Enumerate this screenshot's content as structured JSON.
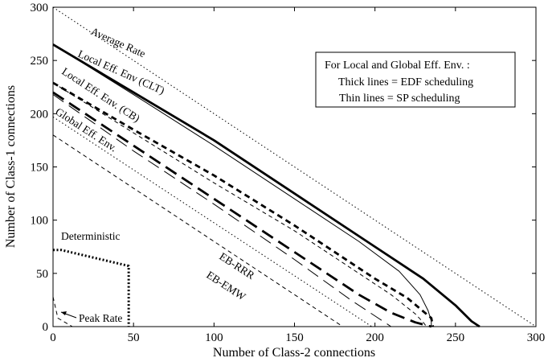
{
  "chart_data": {
    "type": "line",
    "xlabel": "Number of Class-2 connections",
    "ylabel": "Number of Class-1 connections",
    "xlim": [
      0,
      300
    ],
    "ylim": [
      0,
      300
    ],
    "xticks": [
      0,
      50,
      100,
      150,
      200,
      250,
      300
    ],
    "yticks": [
      0,
      50,
      100,
      150,
      200,
      250,
      300
    ],
    "grid": false,
    "legend": {
      "placement": "top-right",
      "lines": [
        "For Local and Global Eff. Env. :",
        "Thick lines = EDF scheduling",
        "Thin lines = SP scheduling"
      ]
    },
    "annotations": {
      "average_rate": "Average Rate",
      "local_clt": "Local Eff. Env (CLT)",
      "local_cb": "Local Eff. Env. (CB)",
      "global": "Global Eff. Env.",
      "eb_rrr": "EB-RRR",
      "eb_emw": "EB-EMW",
      "deterministic": "Deterministic",
      "peak_rate": "Peak Rate"
    },
    "series": [
      {
        "id": "average-rate",
        "style": "dotted-thin",
        "x": [
          0,
          300
        ],
        "y": [
          300,
          0
        ]
      },
      {
        "id": "local-clt-edf",
        "style": "solid-thick",
        "x": [
          0,
          50,
          100,
          150,
          200,
          230,
          250,
          260,
          265
        ],
        "y": [
          265,
          220,
          175,
          125,
          75,
          45,
          20,
          5,
          0
        ]
      },
      {
        "id": "local-clt-sp",
        "style": "solid-thin",
        "x": [
          0,
          50,
          100,
          150,
          190,
          215,
          228,
          233,
          235,
          235
        ],
        "y": [
          265,
          218,
          170,
          120,
          80,
          52,
          30,
          15,
          5,
          0
        ]
      },
      {
        "id": "local-cb-edf",
        "style": "dashed-thick",
        "x": [
          0,
          50,
          100,
          150,
          200,
          220,
          235,
          236
        ],
        "y": [
          229,
          185,
          142,
          95,
          45,
          27,
          8,
          0
        ]
      },
      {
        "id": "local-cb-sp",
        "style": "dashed-thin",
        "x": [
          0,
          50,
          100,
          150,
          190,
          210,
          225,
          230,
          232
        ],
        "y": [
          229,
          182,
          135,
          90,
          50,
          30,
          12,
          4,
          0
        ]
      },
      {
        "id": "global-edf",
        "style": "longdash-thick",
        "x": [
          0,
          50,
          100,
          150,
          190,
          210,
          225,
          235
        ],
        "y": [
          220,
          170,
          120,
          70,
          30,
          13,
          4,
          0
        ]
      },
      {
        "id": "global-sp",
        "style": "longdash-thin",
        "x": [
          0,
          50,
          100,
          150,
          185,
          200,
          210
        ],
        "y": [
          218,
          165,
          115,
          63,
          25,
          10,
          0
        ]
      },
      {
        "id": "eb-rrr",
        "style": "dotted-thin",
        "x": [
          0,
          198
        ],
        "y": [
          197,
          0
        ]
      },
      {
        "id": "eb-emw",
        "style": "dashed-thin",
        "x": [
          0,
          180
        ],
        "y": [
          180,
          0
        ]
      },
      {
        "id": "deterministic",
        "style": "dotted-thick",
        "x": [
          0,
          5,
          47,
          47
        ],
        "y": [
          72,
          72,
          57,
          0
        ]
      },
      {
        "id": "peak-rate",
        "style": "dashed-thin",
        "x": [
          0,
          3,
          12
        ],
        "y": [
          28,
          8,
          0
        ]
      }
    ]
  }
}
